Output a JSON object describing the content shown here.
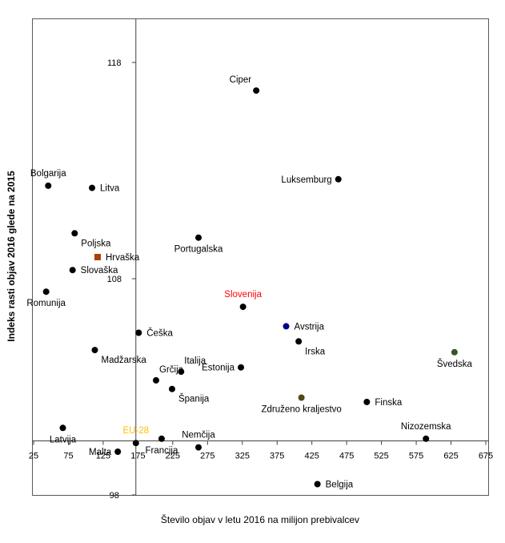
{
  "chart_data": {
    "type": "scatter",
    "xlabel": "Število objav  v letu 2016 na milijon prebivalcev",
    "ylabel": "Indeks rasti objav 2016 glede na 2015",
    "xlim": [
      25,
      675
    ],
    "ylim": [
      98,
      120
    ],
    "x_ticks": [
      "25",
      "75",
      "125",
      "175",
      "225",
      "275",
      "325",
      "375",
      "425",
      "475",
      "525",
      "575",
      "625",
      "675"
    ],
    "y_ticks": [
      "98",
      "108",
      "118"
    ],
    "x_axis_at_y": 100.5,
    "y_axis_at_x": 172,
    "grid": false,
    "points": [
      {
        "name": "Ciper",
        "x": 345,
        "y": 116.7,
        "color": "#000000",
        "marker": "circle",
        "label_color": "#000000",
        "label_pos": "above-left"
      },
      {
        "name": "Bolgarija",
        "x": 46,
        "y": 112.3,
        "color": "#000000",
        "marker": "circle",
        "label_color": "#000000",
        "label_pos": "above"
      },
      {
        "name": "Litva",
        "x": 109,
        "y": 112.2,
        "color": "#000000",
        "marker": "circle",
        "label_color": "#000000",
        "label_pos": "right"
      },
      {
        "name": "Luksemburg",
        "x": 463,
        "y": 112.6,
        "color": "#000000",
        "marker": "circle",
        "label_color": "#000000",
        "label_pos": "left"
      },
      {
        "name": "Poljska",
        "x": 84,
        "y": 110.1,
        "color": "#000000",
        "marker": "circle",
        "label_color": "#000000",
        "label_pos": "below-right"
      },
      {
        "name": "Portugalska",
        "x": 262,
        "y": 109.9,
        "color": "#000000",
        "marker": "circle",
        "label_color": "#000000",
        "label_pos": "below"
      },
      {
        "name": "Hrvaška",
        "x": 117,
        "y": 109.0,
        "color": "#a9410d",
        "marker": "square",
        "label_color": "#000000",
        "label_pos": "right"
      },
      {
        "name": "Slovaška",
        "x": 81,
        "y": 108.4,
        "color": "#000000",
        "marker": "circle",
        "label_color": "#000000",
        "label_pos": "right"
      },
      {
        "name": "Romunija",
        "x": 43,
        "y": 107.4,
        "color": "#000000",
        "marker": "circle",
        "label_color": "#000000",
        "label_pos": "below"
      },
      {
        "name": "Slovenija",
        "x": 326,
        "y": 106.7,
        "color": "#000000",
        "marker": "circle",
        "label_color": "#ff0000",
        "label_pos": "above"
      },
      {
        "name": "Avstrija",
        "x": 388,
        "y": 105.8,
        "color": "#00008b",
        "marker": "circle",
        "label_color": "#000000",
        "label_pos": "right"
      },
      {
        "name": "Češka",
        "x": 176,
        "y": 105.5,
        "color": "#000000",
        "marker": "circle",
        "label_color": "#000000",
        "label_pos": "right"
      },
      {
        "name": "Irska",
        "x": 406,
        "y": 105.1,
        "color": "#000000",
        "marker": "circle",
        "label_color": "#000000",
        "label_pos": "below-right"
      },
      {
        "name": "Madžarska",
        "x": 113,
        "y": 104.7,
        "color": "#000000",
        "marker": "circle",
        "label_color": "#000000",
        "label_pos": "below-right"
      },
      {
        "name": "Švedska",
        "x": 630,
        "y": 104.6,
        "color": "#375623",
        "marker": "circle",
        "label_color": "#000000",
        "label_pos": "below"
      },
      {
        "name": "Estonija",
        "x": 323,
        "y": 103.9,
        "color": "#000000",
        "marker": "circle",
        "label_color": "#000000",
        "label_pos": "left"
      },
      {
        "name": "Italija",
        "x": 237,
        "y": 103.7,
        "color": "#000000",
        "marker": "circle",
        "label_color": "#000000",
        "label_pos": "above-right"
      },
      {
        "name": "Grčija",
        "x": 201,
        "y": 103.3,
        "color": "#000000",
        "marker": "circle",
        "label_color": "#000000",
        "label_pos": "above-right"
      },
      {
        "name": "Španija",
        "x": 224,
        "y": 102.9,
        "color": "#000000",
        "marker": "circle",
        "label_color": "#000000",
        "label_pos": "below-right"
      },
      {
        "name": "Združeno kraljestvo",
        "x": 410,
        "y": 102.5,
        "color": "#4f4a14",
        "marker": "circle",
        "label_color": "#000000",
        "label_pos": "below"
      },
      {
        "name": "Finska",
        "x": 504,
        "y": 102.3,
        "color": "#000000",
        "marker": "circle",
        "label_color": "#000000",
        "label_pos": "right"
      },
      {
        "name": "Latvija",
        "x": 67,
        "y": 101.1,
        "color": "#000000",
        "marker": "circle",
        "label_color": "#000000",
        "label_pos": "below"
      },
      {
        "name": "Nizozemska",
        "x": 589,
        "y": 100.6,
        "color": "#000000",
        "marker": "circle",
        "label_color": "#000000",
        "label_pos": "above"
      },
      {
        "name": "EU-28",
        "x": 172,
        "y": 100.4,
        "color": "#000000",
        "marker": "circle",
        "label_color": "#ffc000",
        "label_pos": "above"
      },
      {
        "name": "Francija",
        "x": 209,
        "y": 100.6,
        "color": "#000000",
        "marker": "circle",
        "label_color": "#000000",
        "label_pos": "below"
      },
      {
        "name": "Nemčija",
        "x": 262,
        "y": 100.2,
        "color": "#000000",
        "marker": "circle",
        "label_color": "#000000",
        "label_pos": "above"
      },
      {
        "name": "Malta",
        "x": 146,
        "y": 100.0,
        "color": "#000000",
        "marker": "circle",
        "label_color": "#000000",
        "label_pos": "left"
      },
      {
        "name": "Belgija",
        "x": 433,
        "y": 98.5,
        "color": "#000000",
        "marker": "circle",
        "label_color": "#000000",
        "label_pos": "right"
      }
    ]
  }
}
